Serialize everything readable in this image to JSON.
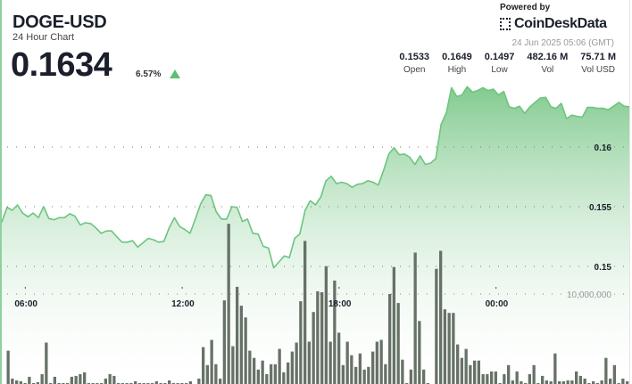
{
  "header": {
    "title": "DOGE-USD",
    "subtitle": "24 Hour Chart",
    "price": "0.1634",
    "change": "6.57%",
    "change_direction": "up",
    "powered_by": "Powered by",
    "brand": "CoinDeskData",
    "timestamp": "24 Jun 2025 05:06 (GMT)",
    "stats": [
      {
        "value": "0.1533",
        "label": "Open"
      },
      {
        "value": "0.1649",
        "label": "High"
      },
      {
        "value": "0.1497",
        "label": "Low"
      },
      {
        "value": "482.16 M",
        "label": "Vol"
      },
      {
        "value": "75.71 M",
        "label": "Vol USD"
      }
    ]
  },
  "colors": {
    "line": "#6cc57f",
    "fill_top": "#7cc88a",
    "bars": "#5f6a5f",
    "up": "#5cbf73"
  },
  "chart_data": {
    "type": "area",
    "x_range": [
      "05:06",
      "05:06"
    ],
    "x_ticks": [
      "06:00",
      "12:00",
      "18:00",
      "00:00"
    ],
    "y_ticks": [
      0.15,
      0.155,
      0.16
    ],
    "y_tick_labels": [
      "0.15",
      "0.155",
      "0.16"
    ],
    "volume_tick": 10000000,
    "volume_tick_label": "10,000,000",
    "grid": "dotted horizontal",
    "price": [
      0.15371,
      0.15495,
      0.1547,
      0.15515,
      0.15446,
      0.15416,
      0.15446,
      0.15408,
      0.155,
      0.15401,
      0.15391,
      0.15408,
      0.15408,
      0.15441,
      0.15421,
      0.15347,
      0.15366,
      0.15359,
      0.15322,
      0.15277,
      0.15297,
      0.15297,
      0.15248,
      0.15203,
      0.15203,
      0.15215,
      0.15161,
      0.15198,
      0.15235,
      0.15223,
      0.15203,
      0.1521,
      0.15322,
      0.15408,
      0.15334,
      0.15309,
      0.15277,
      0.15396,
      0.1552,
      0.15599,
      0.15594,
      0.15458,
      0.15396,
      0.15396,
      0.155,
      0.15495,
      0.15376,
      0.15396,
      0.15277,
      0.15272,
      0.15168,
      0.15154,
      0.14988,
      0.15037,
      0.15087,
      0.15074,
      0.15235,
      0.15272,
      0.1547,
      0.1555,
      0.15515,
      0.15582,
      0.15718,
      0.15755,
      0.15693,
      0.15705,
      0.15693,
      0.15663,
      0.15688,
      0.15693,
      0.15718,
      0.15705,
      0.15681,
      0.15804,
      0.15941,
      0.15995,
      0.15936,
      0.15941,
      0.15916,
      0.15854,
      0.15926,
      0.15854,
      0.15866,
      0.15903,
      0.16188,
      0.16287,
      0.16497,
      0.16423,
      0.16436,
      0.16505,
      0.1646,
      0.16473,
      0.16497,
      0.16473,
      0.16485,
      0.16436,
      0.16465,
      0.16337,
      0.16324,
      0.16342,
      0.16282,
      0.16337,
      0.16374,
      0.16411,
      0.16416,
      0.16337,
      0.16324,
      0.16366,
      0.16238,
      0.16267,
      0.16257,
      0.1625,
      0.16332,
      0.16332,
      0.16324,
      0.16324,
      0.16312,
      0.16342,
      0.16374,
      0.16342,
      0.16337
    ],
    "volume": [
      0,
      3700000.0,
      600000.0,
      400000.0,
      300000.0,
      100000.0,
      800000.0,
      100000.0,
      200000.0,
      1100000.0,
      4600000.0,
      100000.0,
      800000.0,
      100000.0,
      100000.0,
      100000.0,
      800000.0,
      900000.0,
      1100000.0,
      1300000.0,
      100000.0,
      100000.0,
      100000.0,
      100000.0,
      600000.0,
      1100000.0,
      900000.0,
      100000.0,
      100000.0,
      100000.0,
      100000.0,
      300000.0,
      100000.0,
      100000.0,
      100000.0,
      100000.0,
      300000.0,
      100000.0,
      100000.0,
      400000.0,
      100000.0,
      100000.0,
      100000.0,
      100000.0,
      300000.0,
      0,
      600000.0,
      4100000.0,
      2100000.0,
      4900000.0,
      2200000.0,
      600000.0,
      9300000.0,
      17800000.0,
      4200000.0,
      10800000.0,
      8700000.0,
      7400000.0,
      3700000.0,
      2900000.0,
      1600000.0,
      2600000.0,
      1100000.0,
      2200000.0,
      2200000.0,
      3900000.0,
      1300000.0,
      2400000.0,
      3600000.0,
      4600000.0,
      9200000.0,
      15900000.0,
      4700000.0,
      8000000.0,
      10300000.0,
      10200000.0,
      13100000.0,
      4700000.0,
      11500000.0,
      5700000.0,
      2100000.0,
      4700000.0,
      3200000.0,
      1900000.0,
      3400000.0,
      1600000.0,
      1900000.0,
      3600000.0,
      4700000.0,
      4900000.0,
      2200000.0,
      10000000.0,
      13000000.0,
      9000000.0,
      2700000.0,
      100000.0,
      1600000.0,
      14600000.0,
      7000000.0,
      1600000.0,
      100000.0,
      0,
      12800000.0,
      14800000.0,
      8300000.0,
      7900000.0,
      7900000.0,
      4400000.0,
      2900000.0,
      3900000.0,
      2100000.0,
      2600000.0,
      2600000.0,
      1100000.0,
      1100000.0,
      1400000.0,
      1400000.0,
      100000.0,
      1100000.0,
      2100000.0,
      400000.0,
      1400000.0,
      300000.0,
      100000.0,
      1100000.0,
      2100000.0,
      100000.0,
      900000.0,
      400000.0,
      300000.0,
      3400000.0,
      300000.0,
      300000.0,
      400000.0,
      400000.0,
      1400000.0,
      900000.0,
      600000.0,
      100000.0,
      300000.0,
      100000.0,
      400000.0,
      2900000.0,
      600000.0,
      2100000.0,
      100000.0,
      600000.0,
      300000.0
    ]
  }
}
